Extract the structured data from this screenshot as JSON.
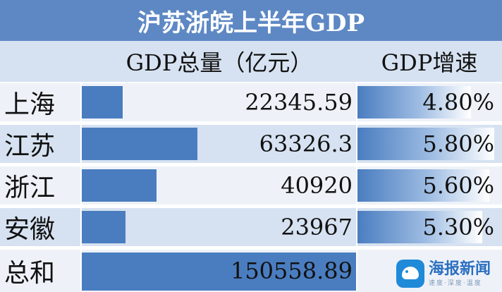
{
  "title": "沪苏浙皖上半年GDP",
  "columns": [
    "",
    "GDP总量（亿元）",
    "GDP增速"
  ],
  "rows": [
    {
      "name": "上海",
      "gdp": "22345.59",
      "growth": "4.80%"
    },
    {
      "name": "江苏",
      "gdp": "63326.3",
      "growth": "5.80%"
    },
    {
      "name": "浙江",
      "gdp": "40920",
      "growth": "5.60%"
    },
    {
      "name": "安徽",
      "gdp": "23967",
      "growth": "5.30%"
    },
    {
      "name": "总和",
      "gdp": "150558.89",
      "growth": ""
    }
  ],
  "colors": {
    "header": "#5d88c4",
    "band": "#d6e2f1",
    "bar": "#4a7dc0"
  },
  "watermark": {
    "brand": "海报新闻",
    "slogan": "速度·深度·温度",
    "icon": "seal-logo-icon"
  },
  "chart_data": {
    "type": "table",
    "title": "沪苏浙皖上半年GDP",
    "categories": [
      "上海",
      "江苏",
      "浙江",
      "安徽",
      "总和"
    ],
    "series": [
      {
        "name": "GDP总量（亿元）",
        "values": [
          22345.59,
          63326.3,
          40920,
          23967,
          150558.89
        ],
        "max": 150558.89
      },
      {
        "name": "GDP增速",
        "values": [
          4.8,
          5.8,
          5.6,
          5.3,
          null
        ],
        "max": 5.8
      }
    ]
  }
}
